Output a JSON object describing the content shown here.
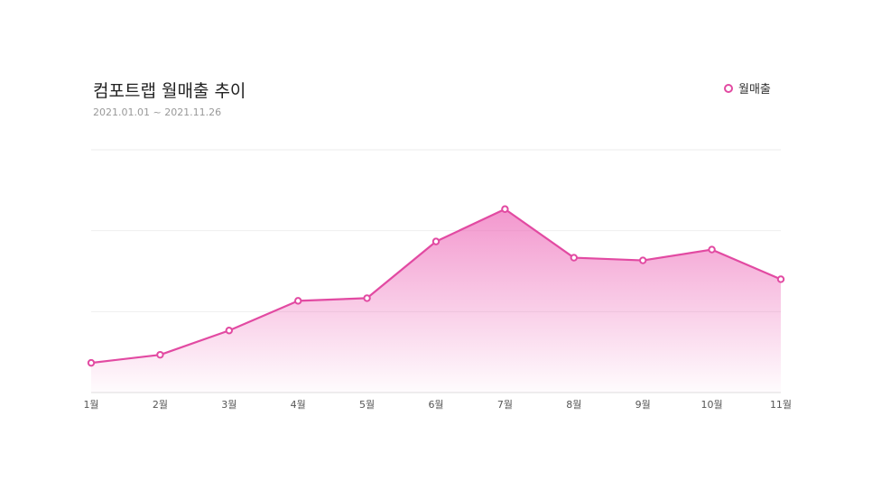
{
  "header": {
    "title": "컴포트랩 월매출 추이",
    "date_range": "2021.01.01 ~ 2021.11.26"
  },
  "legend": {
    "label": "월매출"
  },
  "colors": {
    "series": "#e24aa2",
    "fill": "#f2a6d4",
    "grid": "#eeeeee",
    "axis": "#dddddd"
  },
  "chart_data": {
    "type": "area",
    "title": "컴포트랩 월매출 추이",
    "subtitle": "2021.01.01 ~ 2021.11.26",
    "xlabel": "",
    "ylabel": "",
    "categories": [
      "1월",
      "2월",
      "3월",
      "4월",
      "5월",
      "6월",
      "7월",
      "8월",
      "9월",
      "10월",
      "11월"
    ],
    "series": [
      {
        "name": "월매출",
        "values": [
          11,
          14,
          23,
          34,
          35,
          56,
          68,
          50,
          49,
          53,
          42
        ]
      }
    ],
    "ylim": [
      0,
      90
    ],
    "yticks": [
      0,
      30,
      60,
      90
    ],
    "grid": true,
    "legend_position": "top-right"
  }
}
